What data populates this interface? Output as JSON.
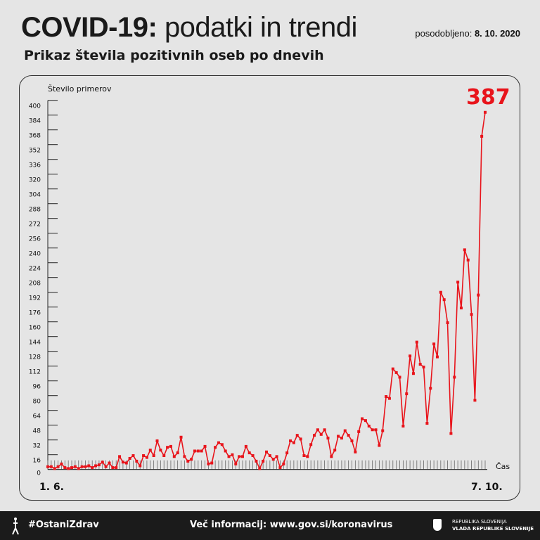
{
  "header": {
    "title_bold": "COVID-19:",
    "title_light": "podatki in trendi",
    "updated_label": "posodobljeno:",
    "updated_date": "8. 10. 2020",
    "subtitle": "Prikaz števila pozitivnih oseb po dnevih"
  },
  "chart_data": {
    "type": "line",
    "title": "",
    "ylabel": "Število primerov",
    "xlabel": "Čas",
    "x_start_label": "1. 6.",
    "x_end_label": "7. 10.",
    "ylim": [
      0,
      400
    ],
    "yticks": [
      0,
      16,
      32,
      48,
      64,
      80,
      96,
      112,
      128,
      144,
      160,
      176,
      192,
      208,
      224,
      240,
      256,
      272,
      288,
      304,
      320,
      336,
      352,
      368,
      384,
      400
    ],
    "grid": false,
    "color": "#e8141b",
    "last_value_label": "387",
    "values": [
      3,
      3,
      1,
      3,
      6,
      2,
      1,
      2,
      3,
      1,
      3,
      3,
      4,
      2,
      4,
      5,
      8,
      3,
      7,
      2,
      2,
      14,
      8,
      7,
      12,
      15,
      9,
      4,
      15,
      13,
      21,
      15,
      31,
      21,
      15,
      24,
      25,
      14,
      18,
      35,
      14,
      9,
      11,
      20,
      20,
      20,
      25,
      6,
      7,
      24,
      29,
      27,
      20,
      14,
      16,
      6,
      14,
      14,
      25,
      18,
      15,
      9,
      1,
      9,
      19,
      15,
      11,
      14,
      2,
      6,
      18,
      31,
      29,
      37,
      33,
      15,
      14,
      27,
      37,
      43,
      38,
      43,
      34,
      14,
      21,
      36,
      34,
      42,
      37,
      31,
      19,
      41,
      55,
      53,
      47,
      43,
      43,
      26,
      42,
      79,
      77,
      109,
      105,
      100,
      47,
      82,
      123,
      104,
      138,
      114,
      111,
      50,
      88,
      136,
      122,
      192,
      184,
      159,
      39,
      100,
      203,
      175,
      238,
      227,
      168,
      75,
      189,
      361,
      387
    ]
  },
  "footer": {
    "hashtag": "#OstaniZdrav",
    "info": "Več informacij: www.gov.si/koronavirus",
    "gov_line1": "REPUBLIKA SLOVENIJA",
    "gov_line2": "VLADA REPUBLIKE SLOVENIJE"
  }
}
